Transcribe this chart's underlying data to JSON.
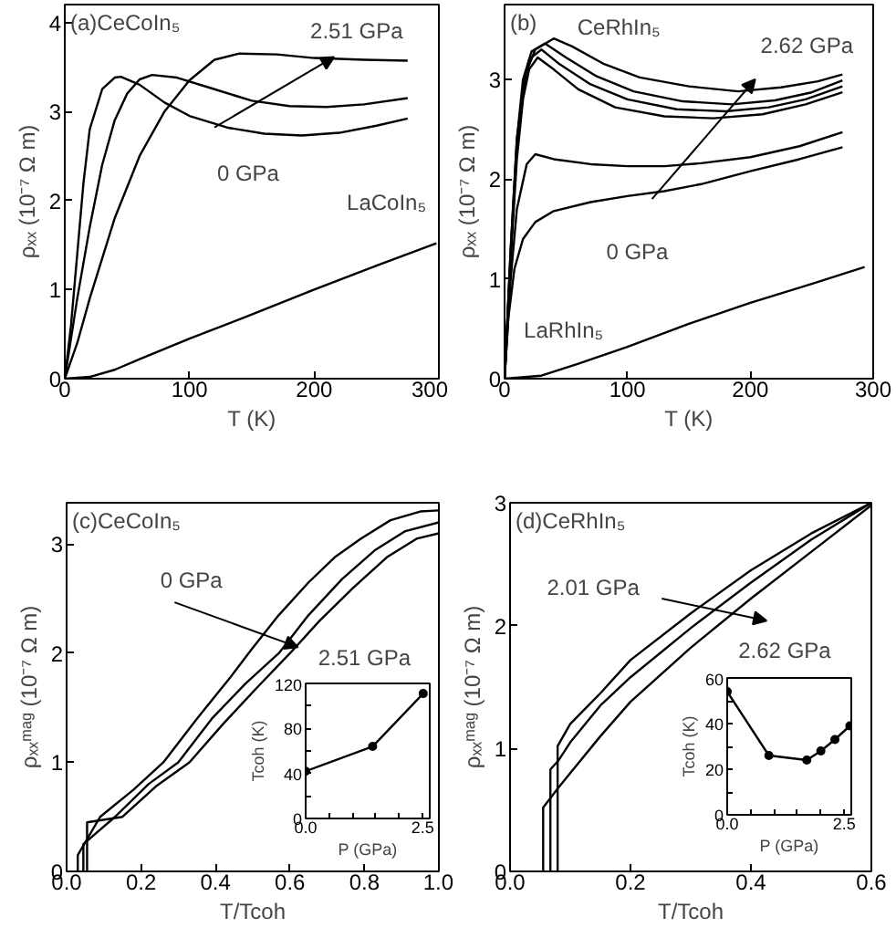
{
  "chart_data": [
    {
      "type": "line",
      "title": "(a)CeCoIn₅",
      "xlabel": "T (K)",
      "ylabel": "ρₓₓ (10⁻⁷ Ω m)",
      "xlim": [
        0,
        300
      ],
      "ylim": [
        0,
        4.2
      ],
      "xticks": [
        0,
        100,
        200,
        300
      ],
      "yticks": [
        0,
        1,
        2,
        3,
        4
      ],
      "x": [
        0,
        5,
        10,
        15,
        20,
        30,
        40,
        45,
        60,
        80,
        100,
        130,
        160,
        190,
        220,
        250,
        275
      ],
      "series": [
        {
          "color": "#000000",
          "values": [
            0,
            0.6,
            1.4,
            2.2,
            2.8,
            3.25,
            3.38,
            3.39,
            3.3,
            3.1,
            2.95,
            2.82,
            2.75,
            2.73,
            2.76,
            2.84,
            2.92
          ]
        },
        {
          "color": "#000000",
          "x": [
            0,
            10,
            20,
            30,
            40,
            50,
            60,
            70,
            90,
            120,
            150,
            180,
            210,
            240,
            275
          ],
          "values": [
            0,
            0.9,
            1.7,
            2.4,
            2.9,
            3.2,
            3.36,
            3.41,
            3.38,
            3.25,
            3.12,
            3.06,
            3.05,
            3.08,
            3.15
          ]
        },
        {
          "color": "#000000",
          "x": [
            0,
            10,
            20,
            40,
            60,
            80,
            100,
            120,
            140,
            170,
            200,
            240,
            275
          ],
          "values": [
            0,
            0.4,
            0.9,
            1.8,
            2.5,
            3.0,
            3.35,
            3.58,
            3.65,
            3.64,
            3.6,
            3.58,
            3.57
          ]
        },
        {
          "color": "#000000",
          "x": [
            0,
            20,
            40,
            60,
            100,
            150,
            200,
            250,
            298
          ],
          "values": [
            0,
            0.02,
            0.1,
            0.22,
            0.45,
            0.72,
            1.0,
            1.27,
            1.52
          ]
        }
      ],
      "annotations": [
        {
          "text": "0 GPa",
          "x": 120,
          "y": 2.82
        },
        "2.51 GPa",
        "LaCoIn₅"
      ]
    },
    {
      "type": "line",
      "title": "(b)",
      "xlabel": "T (K)",
      "ylabel": "ρₓₓ (10⁻⁷ Ω m)",
      "xlim": [
        0,
        300
      ],
      "ylim": [
        0,
        3.75
      ],
      "xticks": [
        0,
        100,
        200,
        300
      ],
      "yticks": [
        0,
        1,
        2,
        3
      ],
      "series": [
        {
          "color": "#000000",
          "x": [
            0,
            3,
            8,
            15,
            25,
            40,
            70,
            100,
            130,
            160,
            200,
            240,
            275
          ],
          "values": [
            0,
            0.6,
            1.1,
            1.4,
            1.57,
            1.68,
            1.77,
            1.83,
            1.88,
            1.95,
            2.08,
            2.2,
            2.32
          ]
        },
        {
          "color": "#000000",
          "x": [
            0,
            5,
            10,
            18,
            25,
            40,
            70,
            100,
            130,
            160,
            200,
            240,
            275
          ],
          "values": [
            0,
            1.0,
            1.7,
            2.15,
            2.25,
            2.2,
            2.15,
            2.13,
            2.13,
            2.16,
            2.22,
            2.33,
            2.47
          ]
        },
        {
          "color": "#000000",
          "x": [
            0,
            5,
            10,
            15,
            20,
            27,
            40,
            60,
            90,
            130,
            170,
            210,
            245,
            275
          ],
          "values": [
            0,
            1.2,
            2.2,
            2.8,
            3.1,
            3.22,
            3.1,
            2.9,
            2.72,
            2.63,
            2.61,
            2.65,
            2.75,
            2.87
          ]
        },
        {
          "color": "#000000",
          "x": [
            0,
            5,
            10,
            15,
            20,
            30,
            45,
            70,
            100,
            140,
            180,
            215,
            245,
            275
          ],
          "values": [
            0,
            1.25,
            2.3,
            2.9,
            3.2,
            3.3,
            3.15,
            2.95,
            2.8,
            2.7,
            2.68,
            2.72,
            2.8,
            2.93
          ]
        },
        {
          "color": "#000000",
          "x": [
            0,
            5,
            10,
            15,
            22,
            33,
            50,
            75,
            105,
            145,
            185,
            220,
            250,
            275
          ],
          "values": [
            0,
            1.3,
            2.4,
            3.0,
            3.28,
            3.36,
            3.22,
            3.03,
            2.88,
            2.78,
            2.75,
            2.79,
            2.87,
            2.99
          ]
        },
        {
          "color": "#000000",
          "x": [
            0,
            5,
            10,
            17,
            25,
            40,
            55,
            80,
            110,
            150,
            190,
            225,
            255,
            275
          ],
          "values": [
            0,
            1.3,
            2.4,
            3.05,
            3.3,
            3.41,
            3.33,
            3.16,
            3.02,
            2.93,
            2.88,
            2.92,
            2.98,
            3.05
          ]
        },
        {
          "color": "#000000",
          "x": [
            0,
            30,
            60,
            100,
            150,
            200,
            250,
            293
          ],
          "values": [
            0,
            0.03,
            0.15,
            0.32,
            0.55,
            0.76,
            0.95,
            1.12
          ]
        }
      ],
      "annotations": [
        "0 GPa",
        "2.62 GPa",
        "CeRhIn₅",
        "LaRhIn₅"
      ]
    },
    {
      "type": "line",
      "title": "(c)CeCoIn₅",
      "xlabel": "T/Tcoh",
      "ylabel": "ρₓₓᵐᵃᵍ (10⁻⁷ Ω m)",
      "xlim": [
        0,
        1
      ],
      "ylim": [
        0,
        3.38
      ],
      "xticks": [
        {
          "value": 0,
          "label": "0.0"
        },
        {
          "value": 0.2,
          "label": "0.2"
        },
        {
          "value": 0.4,
          "label": "0.4"
        },
        {
          "value": 0.6,
          "label": "0.6"
        },
        {
          "value": 0.8,
          "label": "0.8"
        },
        {
          "value": 1,
          "label": "1.0"
        }
      ],
      "yticks": [
        0,
        1,
        2,
        3
      ],
      "series": [
        {
          "color": "#000000",
          "x": [
            0.03,
            0.03,
            0.09,
            0.18,
            0.26,
            0.35,
            0.44,
            0.5,
            0.57,
            0.65,
            0.72,
            0.79,
            0.87,
            0.95,
            1.0
          ],
          "values": [
            0,
            0.15,
            0.5,
            0.75,
            1.0,
            1.4,
            1.78,
            2.05,
            2.35,
            2.65,
            2.88,
            3.05,
            3.22,
            3.3,
            3.31
          ]
        },
        {
          "color": "#000000",
          "x": [
            0.045,
            0.045,
            0.13,
            0.22,
            0.3,
            0.39,
            0.48,
            0.57,
            0.65,
            0.74,
            0.83,
            0.91,
            1.0
          ],
          "values": [
            0,
            0.25,
            0.5,
            0.8,
            1.0,
            1.4,
            1.72,
            2.0,
            2.35,
            2.68,
            2.95,
            3.12,
            3.2
          ]
        },
        {
          "color": "#000000",
          "x": [
            0.055,
            0.055,
            0.15,
            0.24,
            0.33,
            0.42,
            0.51,
            0.6,
            0.68,
            0.77,
            0.86,
            0.94,
            1.0
          ],
          "values": [
            0,
            0.45,
            0.5,
            0.78,
            1.0,
            1.35,
            1.68,
            2.0,
            2.3,
            2.6,
            2.88,
            3.05,
            3.1
          ]
        }
      ],
      "annotations": [
        {
          "text": "0 GPa",
          "x": 0.53,
          "y": 2.17
        },
        "2.51 GPa"
      ]
    },
    {
      "type": "line",
      "xlabel": "P (GPa)",
      "ylabel": "Tcoh (K)",
      "marker": "circle",
      "xlim": [
        0,
        2.65
      ],
      "ylim": [
        0,
        120
      ],
      "xticks": [
        {
          "value": 0,
          "label": "0.0"
        },
        {
          "value": 0.5,
          "label": null
        },
        {
          "value": 1,
          "label": null
        },
        {
          "value": 1.5,
          "label": null
        },
        {
          "value": 2,
          "label": null
        },
        {
          "value": 2.5,
          "label": "2.5"
        }
      ],
      "yticks": [
        0,
        {
          "value": 20,
          "label": null
        },
        40,
        {
          "value": 60,
          "label": null
        },
        80,
        {
          "value": 100,
          "label": null
        },
        120
      ],
      "x": [
        0,
        1.43,
        2.51
      ],
      "series": [
        {
          "color": "#000000",
          "values": [
            42,
            64,
            111
          ]
        }
      ]
    },
    {
      "type": "line",
      "title": "(d)CeRhIn₅",
      "xlabel": "T/Tcoh",
      "ylabel": "ρₓₓᵐᵃᵍ (10⁻⁷ Ω m)",
      "xlim": [
        0,
        0.6
      ],
      "ylim": [
        0,
        3
      ],
      "xticks": [
        {
          "value": 0,
          "label": "0.0"
        },
        {
          "value": 0.2,
          "label": "0.2"
        },
        {
          "value": 0.4,
          "label": "0.4"
        },
        {
          "value": 0.6,
          "label": "0.6"
        }
      ],
      "yticks": [
        0,
        1,
        2,
        3
      ],
      "series": [
        {
          "color": "#000000",
          "x": [
            0.079,
            0.079,
            0.1,
            0.15,
            0.2,
            0.3,
            0.4,
            0.5,
            0.6
          ],
          "values": [
            0,
            1.02,
            1.2,
            1.45,
            1.72,
            2.1,
            2.45,
            2.75,
            3.0
          ]
        },
        {
          "color": "#000000",
          "x": [
            0.067,
            0.067,
            0.08,
            0.1,
            0.15,
            0.2,
            0.3,
            0.4,
            0.5,
            0.6
          ],
          "values": [
            0,
            0.83,
            0.9,
            1.05,
            1.35,
            1.58,
            1.98,
            2.35,
            2.7,
            3.0
          ]
        },
        {
          "color": "#000000",
          "x": [
            0.055,
            0.055,
            0.08,
            0.1,
            0.15,
            0.2,
            0.3,
            0.4,
            0.5,
            0.6
          ],
          "values": [
            0,
            0.52,
            0.68,
            0.8,
            1.1,
            1.38,
            1.82,
            2.22,
            2.6,
            2.98
          ]
        }
      ],
      "annotations": [
        "2.01 GPa",
        "2.62 GPa"
      ]
    },
    {
      "type": "line",
      "xlabel": "P (GPa)",
      "ylabel": "Tcoh (K)",
      "marker": "circle",
      "xlim": [
        0,
        2.65
      ],
      "ylim": [
        0,
        60
      ],
      "xticks": [
        {
          "value": 0,
          "label": "0.0"
        },
        {
          "value": 0.5,
          "label": null
        },
        {
          "value": 1,
          "label": null
        },
        {
          "value": 1.5,
          "label": null
        },
        {
          "value": 2,
          "label": null
        },
        {
          "value": 2.5,
          "label": "2.5"
        }
      ],
      "yticks": [
        0,
        {
          "value": 10,
          "label": null
        },
        20,
        {
          "value": 30,
          "label": null
        },
        40,
        {
          "value": 50,
          "label": null
        },
        60
      ],
      "x": [
        0,
        0.89,
        1.7,
        2.0,
        2.3,
        2.62
      ],
      "series": [
        {
          "color": "#000000",
          "values": [
            54,
            26,
            24,
            28,
            33,
            39
          ]
        }
      ]
    }
  ]
}
